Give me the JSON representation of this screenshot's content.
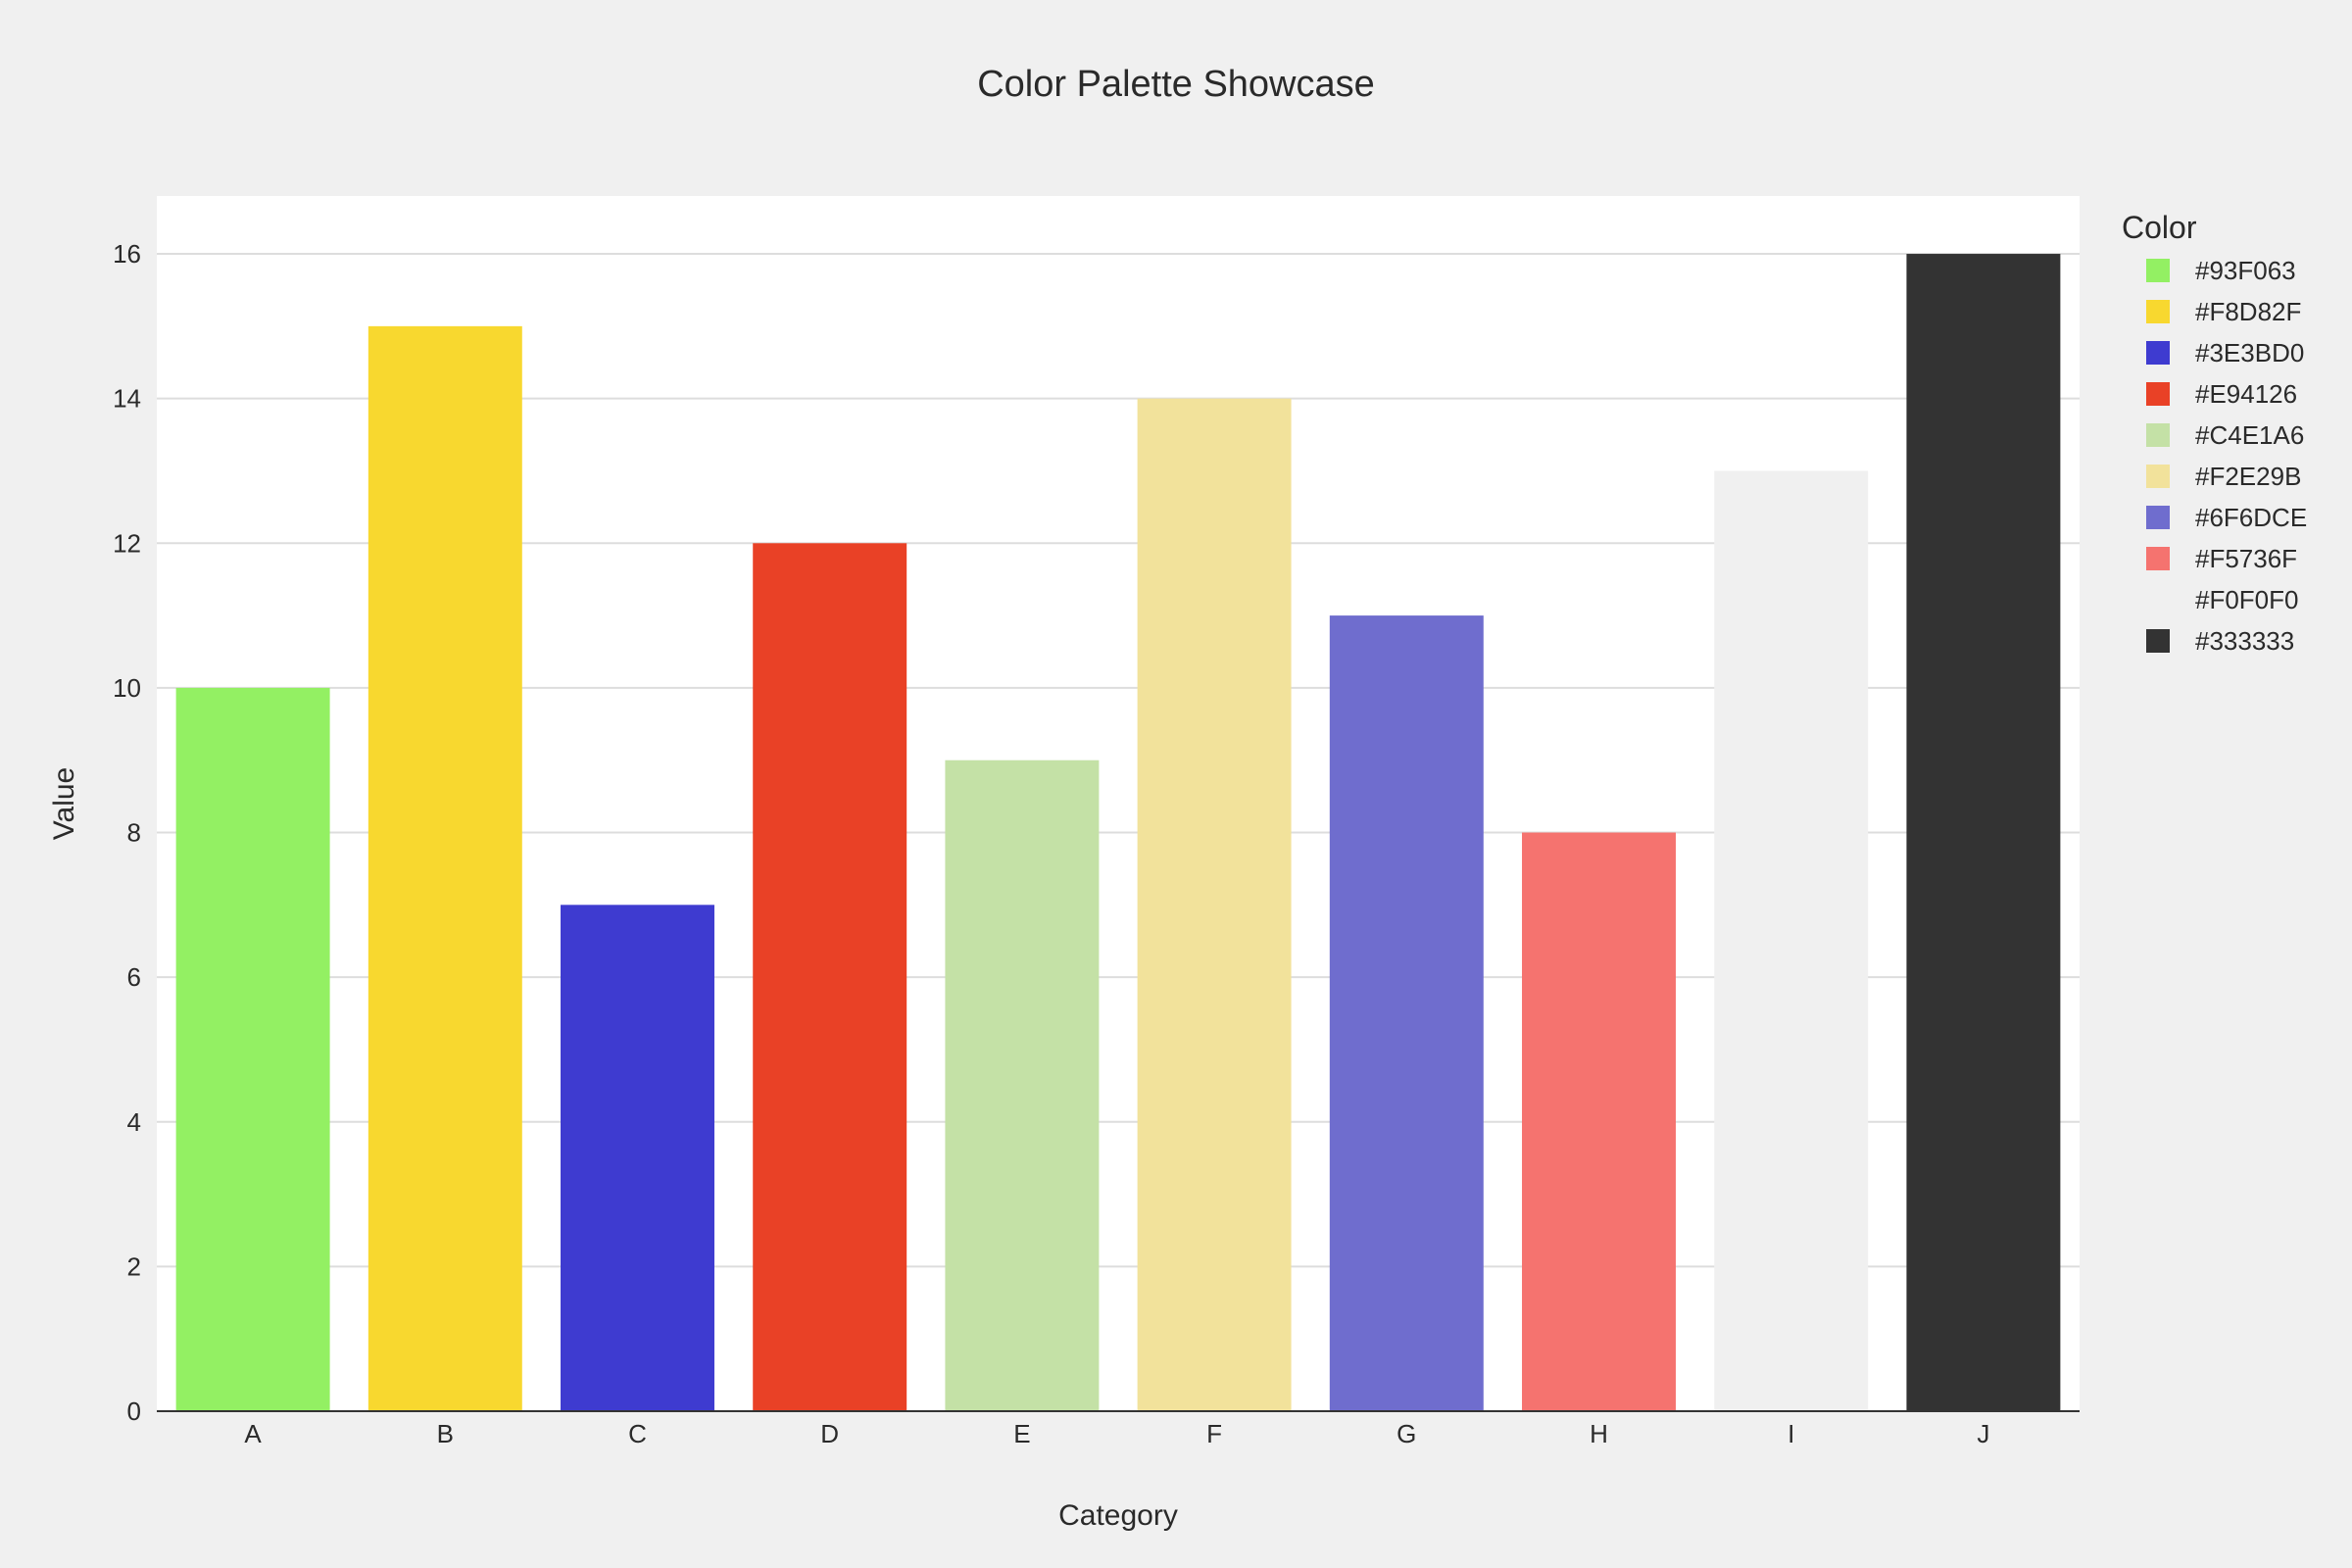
{
  "chart_data": {
    "type": "bar",
    "title": "Color Palette Showcase",
    "xlabel": "Category",
    "ylabel": "Value",
    "categories": [
      "A",
      "B",
      "C",
      "D",
      "E",
      "F",
      "G",
      "H",
      "I",
      "J"
    ],
    "values": [
      10,
      15,
      7,
      12,
      9,
      14,
      11,
      8,
      13,
      16
    ],
    "colors": [
      "#93F063",
      "#F8D82F",
      "#3E3BD0",
      "#E94126",
      "#C4E1A6",
      "#F2E29B",
      "#6F6DCE",
      "#F5736F",
      "#F0F0F0",
      "#333333"
    ],
    "ylim": [
      0,
      16.8
    ],
    "yticks": [
      0,
      2,
      4,
      6,
      8,
      10,
      12,
      14,
      16
    ],
    "grid": true,
    "legend": {
      "title": "Color",
      "placement": "right",
      "entries": [
        "#93F063",
        "#F8D82F",
        "#3E3BD0",
        "#E94126",
        "#C4E1A6",
        "#F2E29B",
        "#6F6DCE",
        "#F5736F",
        "#F0F0F0",
        "#333333"
      ]
    }
  },
  "style": {
    "page_background": "#F0F0F0",
    "plot_background": "#FFFFFF",
    "grid_color": "#DDDDDD",
    "axis_color": "#333333"
  }
}
